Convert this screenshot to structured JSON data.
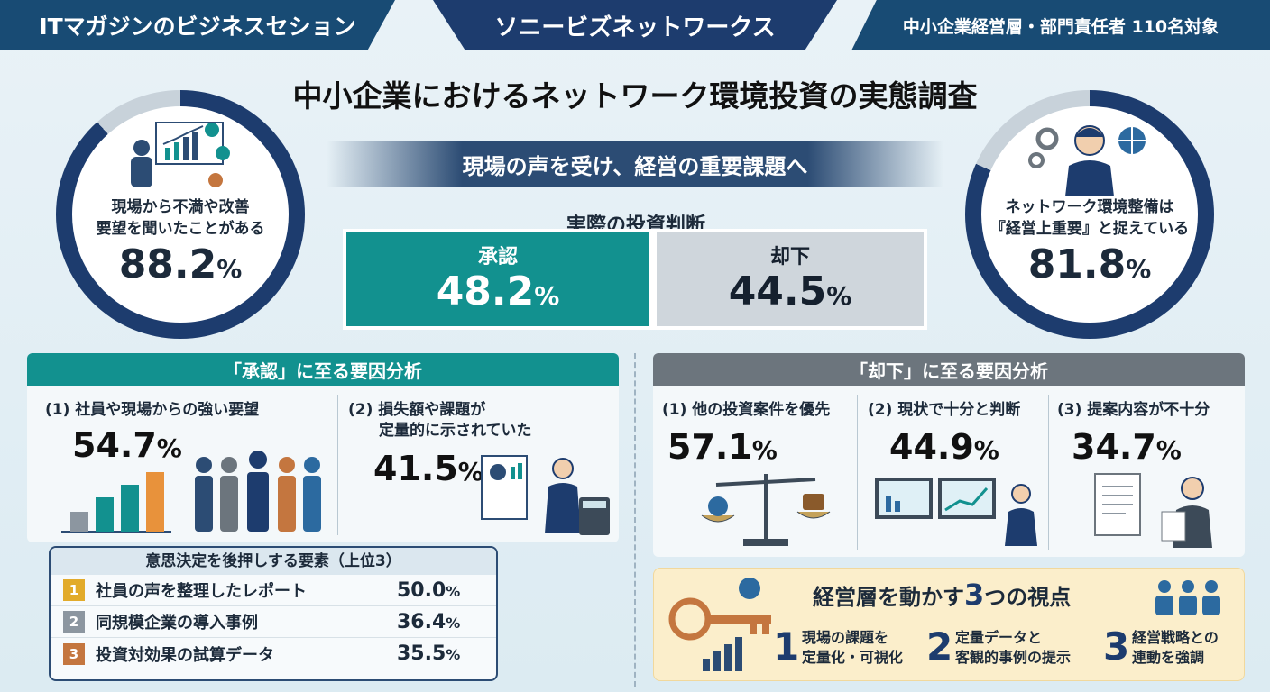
{
  "header": {
    "left": "ITマガジンのビジネスセション",
    "center": "ソニービズネットワークス",
    "right": "中小企業経営層・部門責任者 110名対象"
  },
  "title": "中小企業におけるネットワーク環境投資の実態調査",
  "subtitle": "現場の声を受け、経営の重要課題へ",
  "left_stat": {
    "label_1": "現場から不満や改善",
    "label_2": "要望を聞いたことがある",
    "value": "88.2",
    "unit": "%",
    "fraction": 0.882
  },
  "right_stat": {
    "label_1": "ネットワーク環境整備は",
    "label_2": "『経営上重要』と捉えている",
    "value": "81.8",
    "unit": "%",
    "fraction": 0.818
  },
  "decision": {
    "title": "実際の投資判断",
    "approve": {
      "label": "承認",
      "value": "48.2",
      "unit": "%"
    },
    "reject": {
      "label": "却下",
      "value": "44.5",
      "unit": "%"
    }
  },
  "approve_panel": {
    "title": "「承認」に至る要因分析",
    "f1_label": "(1) 社員や現場からの強い要望",
    "f1_value": "54.7",
    "f1_unit": "%",
    "f2_label_1": "(2) 損失額や課題が",
    "f2_label_2": "定量的に示されていた",
    "f2_value": "41.5",
    "f2_unit": "%"
  },
  "boosters": {
    "title": "意思決定を後押しする要素（上位3）",
    "items": [
      {
        "rank": "1",
        "label": "社員の声を整理したレポート",
        "value": "50.0",
        "unit": "%",
        "color": "#e2ab2b"
      },
      {
        "rank": "2",
        "label": "同規模企業の導入事例",
        "value": "36.4",
        "unit": "%",
        "color": "#8c96a0"
      },
      {
        "rank": "3",
        "label": "投資対効果の試算データ",
        "value": "35.5",
        "unit": "%",
        "color": "#c4763f"
      }
    ]
  },
  "reject_panel": {
    "title": "「却下」に至る要因分析",
    "f1_label": "(1) 他の投資案件を優先",
    "f1_value": "57.1",
    "f1_unit": "%",
    "f2_label": "(2) 現状で十分と判断",
    "f2_value": "44.9",
    "f2_unit": "%",
    "f3_label": "(3) 提案内容が不十分",
    "f3_value": "34.7",
    "f3_unit": "%"
  },
  "perspectives": {
    "title_a": "経営層を動かす",
    "title_b": "3",
    "title_c": "つの視点",
    "items": [
      {
        "num": "1",
        "line1": "現場の課題を",
        "line2": "定量化・可視化"
      },
      {
        "num": "2",
        "line1": "定量データと",
        "line2": "客観的事例の提示"
      },
      {
        "num": "3",
        "line1": "経営戦略との",
        "line2": "連動を強調"
      }
    ]
  },
  "colors": {
    "teal": "#12918f",
    "navy": "#1d3c6e",
    "gray": "#6c757d"
  }
}
